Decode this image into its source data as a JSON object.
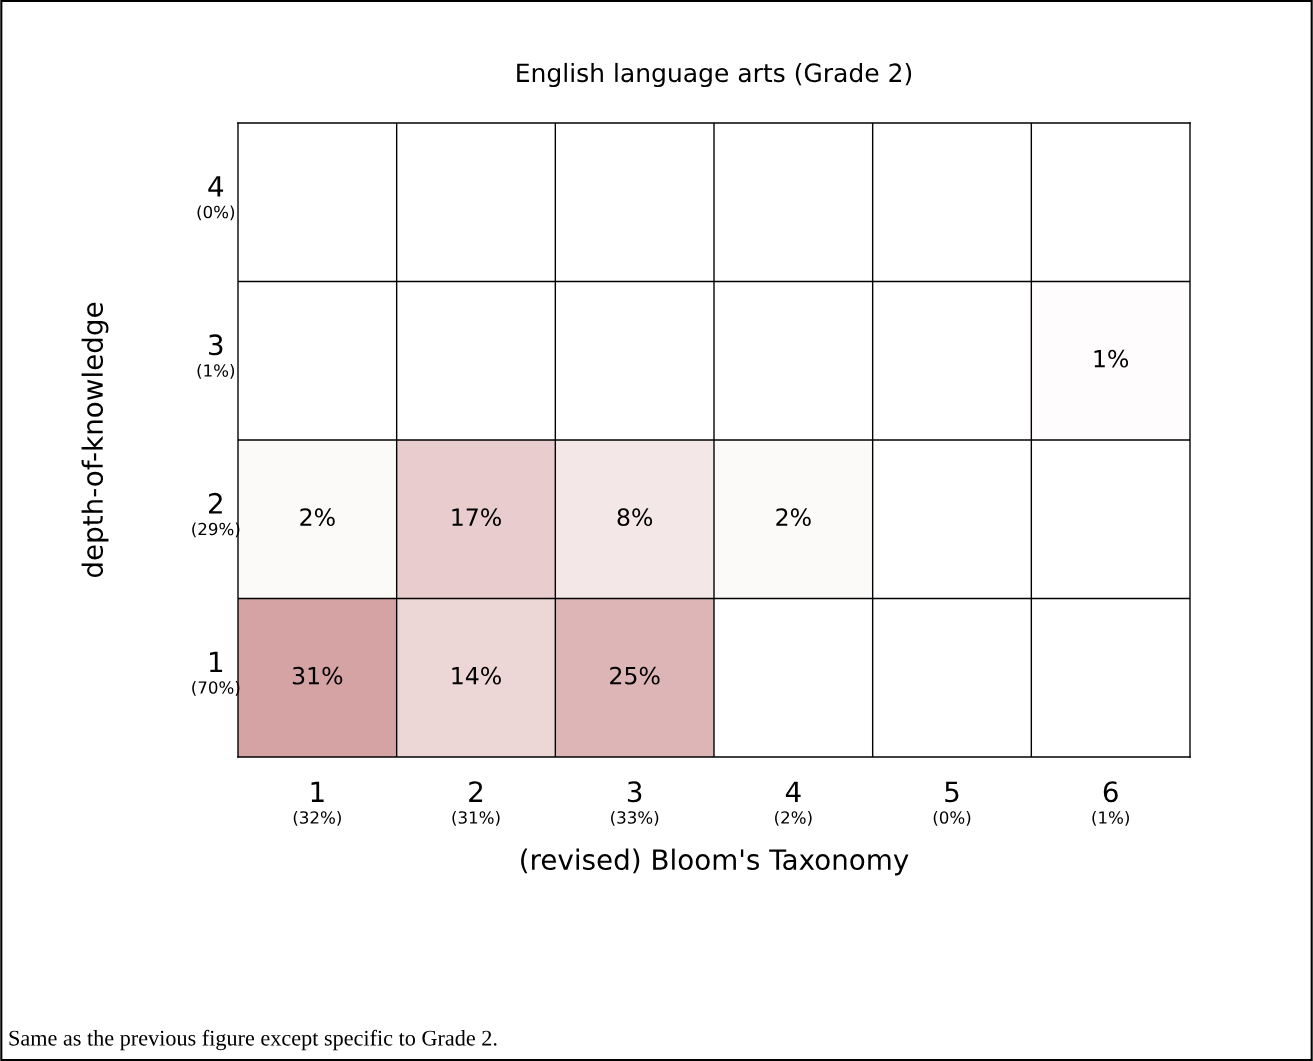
{
  "chart_data": {
    "type": "heatmap",
    "title": "English language arts (Grade 2)",
    "xlabel": "(revised) Bloom's Taxonomy",
    "ylabel": "depth-of-knowledge",
    "categories": [
      "1\n(32%)",
      "2\n(31%)",
      "3\n(33%)",
      "4\n(2%)",
      "5\n(0%)",
      "6\n(1%)"
    ],
    "y_categories": [
      "4\n(0%)",
      "3\n(1%)",
      "2\n(29%)",
      "1\n(70%)"
    ],
    "cells": [
      [
        null,
        null,
        null,
        null,
        null,
        null
      ],
      [
        null,
        null,
        null,
        null,
        null,
        1
      ],
      [
        2,
        17,
        8,
        2,
        null,
        null
      ],
      [
        31,
        14,
        25,
        null,
        null,
        null
      ]
    ],
    "cell_labels": [
      [
        null,
        null,
        null,
        null,
        null,
        null
      ],
      [
        null,
        null,
        null,
        null,
        null,
        "1%"
      ],
      [
        "2%",
        "17%",
        "8%",
        "2%",
        null,
        null
      ],
      [
        "31%",
        "14%",
        "25%",
        null,
        null,
        null
      ]
    ],
    "color": "#d6a3a5",
    "annotations": [
      "Same as the previous figure except specific to Grade 2."
    ]
  }
}
